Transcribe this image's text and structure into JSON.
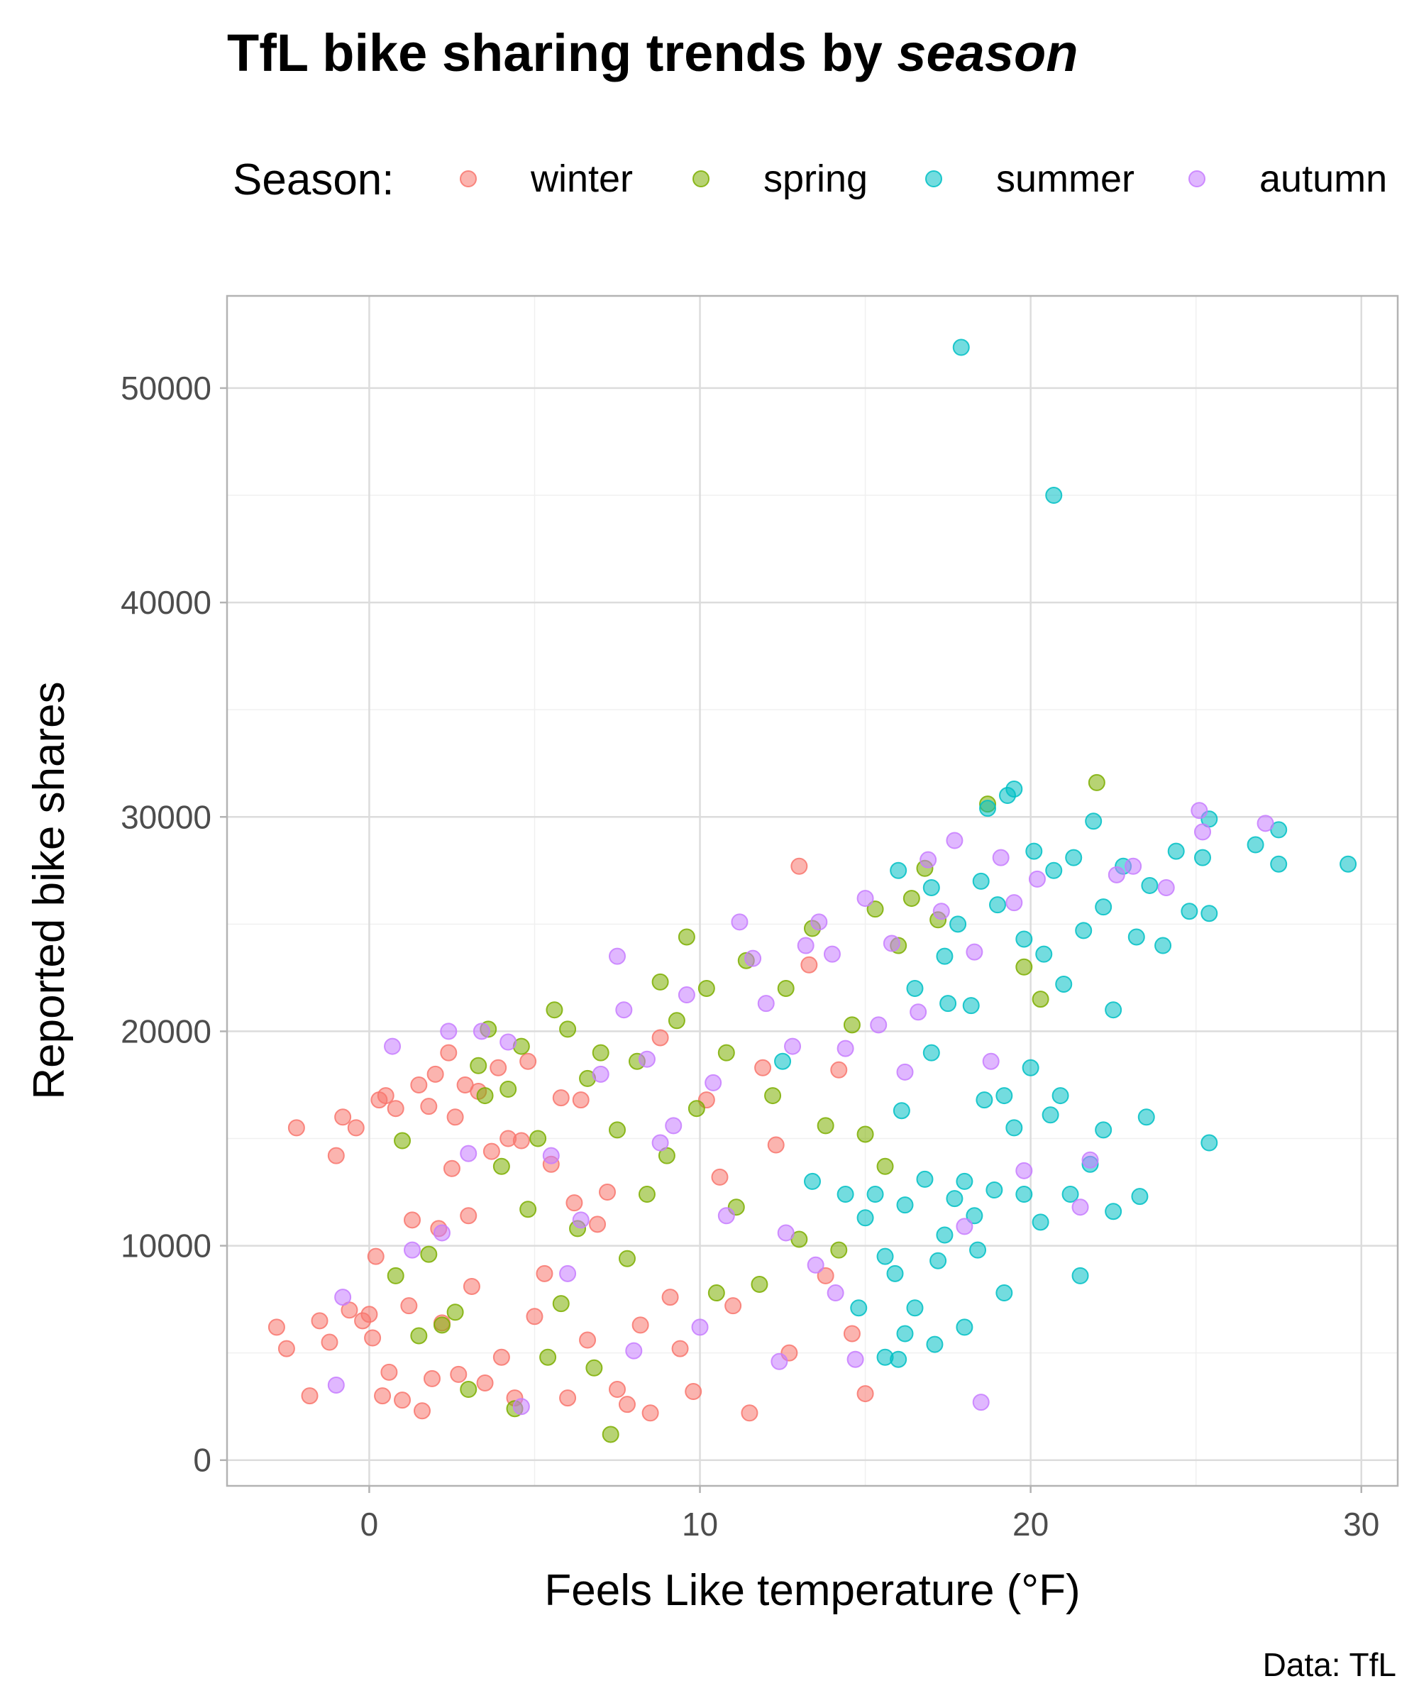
{
  "title": {
    "text": "TfL bike sharing trends by ",
    "emphasis": "season"
  },
  "caption": "Data: TfL",
  "legend": {
    "title": "Season:",
    "position": "top",
    "entries": [
      {
        "label": "winter",
        "color": "#F8766D"
      },
      {
        "label": "spring",
        "color": "#7CAE00"
      },
      {
        "label": "summer",
        "color": "#00BFC4"
      },
      {
        "label": "autumn",
        "color": "#C77CFF"
      }
    ]
  },
  "chart_data": {
    "type": "scatter",
    "xlabel": "Feels Like temperature (°F)",
    "ylabel": "Reported bike shares",
    "xlim": [
      -4.3,
      31.1
    ],
    "ylim": [
      -1200,
      54300
    ],
    "xticks": [
      0,
      10,
      20,
      30
    ],
    "yticks": [
      0,
      10000,
      20000,
      30000,
      40000,
      50000
    ],
    "xtick_labels": [
      "0",
      "10",
      "20",
      "30"
    ],
    "ytick_labels": [
      "0",
      "10000",
      "20000",
      "30000",
      "40000",
      "50000"
    ],
    "grid": true,
    "marker_opacity": 0.55,
    "series": [
      {
        "name": "winter",
        "color": "#F8766D",
        "points": [
          [
            -2.8,
            6200
          ],
          [
            -2.5,
            5200
          ],
          [
            -2.2,
            15500
          ],
          [
            -1.8,
            3000
          ],
          [
            -1.5,
            6500
          ],
          [
            -1.2,
            5500
          ],
          [
            -1.0,
            14200
          ],
          [
            -0.8,
            16000
          ],
          [
            -0.6,
            7000
          ],
          [
            -0.4,
            15500
          ],
          [
            -0.2,
            6500
          ],
          [
            0.0,
            6800
          ],
          [
            0.1,
            5700
          ],
          [
            0.2,
            9500
          ],
          [
            0.3,
            16800
          ],
          [
            0.4,
            3000
          ],
          [
            0.5,
            17000
          ],
          [
            0.6,
            4100
          ],
          [
            0.8,
            16400
          ],
          [
            1.0,
            2800
          ],
          [
            1.2,
            7200
          ],
          [
            1.3,
            11200
          ],
          [
            1.5,
            17500
          ],
          [
            1.6,
            2300
          ],
          [
            1.8,
            16500
          ],
          [
            1.9,
            3800
          ],
          [
            2.0,
            18000
          ],
          [
            2.1,
            10800
          ],
          [
            2.2,
            6400
          ],
          [
            2.4,
            19000
          ],
          [
            2.5,
            13600
          ],
          [
            2.6,
            16000
          ],
          [
            2.7,
            4000
          ],
          [
            2.9,
            17500
          ],
          [
            3.0,
            11400
          ],
          [
            3.1,
            8100
          ],
          [
            3.3,
            17200
          ],
          [
            3.5,
            3600
          ],
          [
            3.7,
            14400
          ],
          [
            3.9,
            18300
          ],
          [
            4.0,
            4800
          ],
          [
            4.2,
            15000
          ],
          [
            4.4,
            2900
          ],
          [
            4.6,
            14900
          ],
          [
            4.8,
            18600
          ],
          [
            5.0,
            6700
          ],
          [
            5.3,
            8700
          ],
          [
            5.5,
            13800
          ],
          [
            5.8,
            16900
          ],
          [
            6.0,
            2900
          ],
          [
            6.2,
            12000
          ],
          [
            6.4,
            16800
          ],
          [
            6.6,
            5600
          ],
          [
            6.9,
            11000
          ],
          [
            7.2,
            12500
          ],
          [
            7.5,
            3300
          ],
          [
            7.8,
            2600
          ],
          [
            8.2,
            6300
          ],
          [
            8.5,
            2200
          ],
          [
            8.8,
            19700
          ],
          [
            9.1,
            7600
          ],
          [
            9.4,
            5200
          ],
          [
            9.8,
            3200
          ],
          [
            10.2,
            16800
          ],
          [
            10.6,
            13200
          ],
          [
            11.0,
            7200
          ],
          [
            11.5,
            2200
          ],
          [
            11.9,
            18300
          ],
          [
            12.3,
            14700
          ],
          [
            12.7,
            5000
          ],
          [
            13.0,
            27700
          ],
          [
            13.3,
            23100
          ],
          [
            13.8,
            8600
          ],
          [
            14.2,
            18200
          ],
          [
            14.6,
            5900
          ],
          [
            15.0,
            3100
          ]
        ]
      },
      {
        "name": "spring",
        "color": "#7CAE00",
        "points": [
          [
            0.8,
            8600
          ],
          [
            1.0,
            14900
          ],
          [
            1.5,
            5800
          ],
          [
            1.8,
            9600
          ],
          [
            2.2,
            6300
          ],
          [
            2.6,
            6900
          ],
          [
            3.0,
            3300
          ],
          [
            3.3,
            18400
          ],
          [
            3.5,
            17000
          ],
          [
            3.6,
            20100
          ],
          [
            4.0,
            13700
          ],
          [
            4.2,
            17300
          ],
          [
            4.4,
            2400
          ],
          [
            4.6,
            19300
          ],
          [
            4.8,
            11700
          ],
          [
            5.1,
            15000
          ],
          [
            5.4,
            4800
          ],
          [
            5.6,
            21000
          ],
          [
            5.8,
            7300
          ],
          [
            6.0,
            20100
          ],
          [
            6.3,
            10800
          ],
          [
            6.6,
            17800
          ],
          [
            6.8,
            4300
          ],
          [
            7.0,
            19000
          ],
          [
            7.3,
            1200
          ],
          [
            7.5,
            15400
          ],
          [
            7.8,
            9400
          ],
          [
            8.1,
            18600
          ],
          [
            8.4,
            12400
          ],
          [
            8.8,
            22300
          ],
          [
            9.0,
            14200
          ],
          [
            9.3,
            20500
          ],
          [
            9.6,
            24400
          ],
          [
            9.9,
            16400
          ],
          [
            10.2,
            22000
          ],
          [
            10.5,
            7800
          ],
          [
            10.8,
            19000
          ],
          [
            11.1,
            11800
          ],
          [
            11.4,
            23300
          ],
          [
            11.8,
            8200
          ],
          [
            12.2,
            17000
          ],
          [
            12.6,
            22000
          ],
          [
            13.0,
            10300
          ],
          [
            13.4,
            24800
          ],
          [
            13.8,
            15600
          ],
          [
            14.2,
            9800
          ],
          [
            14.6,
            20300
          ],
          [
            15.0,
            15200
          ],
          [
            15.3,
            25700
          ],
          [
            15.6,
            13700
          ],
          [
            16.0,
            24000
          ],
          [
            16.4,
            26200
          ],
          [
            16.8,
            27600
          ],
          [
            17.2,
            25200
          ],
          [
            19.8,
            23000
          ],
          [
            20.3,
            21500
          ],
          [
            22.0,
            31600
          ],
          [
            18.7,
            30600
          ]
        ]
      },
      {
        "name": "summer",
        "color": "#00BFC4",
        "points": [
          [
            17.9,
            51900
          ],
          [
            20.7,
            45000
          ],
          [
            16.0,
            27500
          ],
          [
            16.5,
            22000
          ],
          [
            17.0,
            26700
          ],
          [
            17.4,
            23500
          ],
          [
            17.8,
            25000
          ],
          [
            18.2,
            21200
          ],
          [
            18.5,
            27000
          ],
          [
            18.7,
            30400
          ],
          [
            19.0,
            25900
          ],
          [
            19.3,
            31000
          ],
          [
            19.5,
            31300
          ],
          [
            19.8,
            24300
          ],
          [
            20.1,
            28400
          ],
          [
            20.4,
            23600
          ],
          [
            20.7,
            27500
          ],
          [
            21.0,
            22200
          ],
          [
            21.3,
            28100
          ],
          [
            21.6,
            24700
          ],
          [
            21.9,
            29800
          ],
          [
            22.2,
            25800
          ],
          [
            22.5,
            21000
          ],
          [
            22.8,
            27700
          ],
          [
            23.2,
            24400
          ],
          [
            23.6,
            26800
          ],
          [
            24.0,
            24000
          ],
          [
            24.4,
            28400
          ],
          [
            24.8,
            25600
          ],
          [
            25.2,
            28100
          ],
          [
            25.4,
            25500
          ],
          [
            25.4,
            29900
          ],
          [
            25.4,
            14800
          ],
          [
            26.8,
            28700
          ],
          [
            27.5,
            27800
          ],
          [
            27.5,
            29400
          ],
          [
            29.6,
            27800
          ],
          [
            17.0,
            19000
          ],
          [
            17.5,
            21300
          ],
          [
            18.0,
            13000
          ],
          [
            18.3,
            11400
          ],
          [
            18.6,
            16800
          ],
          [
            18.9,
            12600
          ],
          [
            19.2,
            17000
          ],
          [
            19.5,
            15500
          ],
          [
            19.8,
            12400
          ],
          [
            20.0,
            18300
          ],
          [
            20.3,
            11100
          ],
          [
            20.6,
            16100
          ],
          [
            20.9,
            17000
          ],
          [
            21.2,
            12400
          ],
          [
            21.5,
            8600
          ],
          [
            21.8,
            13800
          ],
          [
            22.2,
            15400
          ],
          [
            22.5,
            11600
          ],
          [
            23.3,
            12300
          ],
          [
            23.5,
            16000
          ],
          [
            15.0,
            11300
          ],
          [
            15.3,
            12400
          ],
          [
            15.6,
            9500
          ],
          [
            15.9,
            8700
          ],
          [
            16.2,
            11900
          ],
          [
            16.5,
            7100
          ],
          [
            16.8,
            13100
          ],
          [
            17.1,
            5400
          ],
          [
            17.4,
            10500
          ],
          [
            17.7,
            12200
          ],
          [
            18.0,
            6200
          ],
          [
            18.4,
            9800
          ],
          [
            14.4,
            12400
          ],
          [
            14.8,
            7100
          ],
          [
            15.6,
            4800
          ],
          [
            16.2,
            5900
          ],
          [
            16.0,
            4700
          ],
          [
            17.2,
            9300
          ],
          [
            19.2,
            7800
          ],
          [
            12.5,
            18600
          ],
          [
            13.4,
            13000
          ],
          [
            16.1,
            16300
          ]
        ]
      },
      {
        "name": "autumn",
        "color": "#C77CFF",
        "points": [
          [
            -1.0,
            3500
          ],
          [
            -0.8,
            7600
          ],
          [
            0.7,
            19300
          ],
          [
            1.3,
            9800
          ],
          [
            2.2,
            10600
          ],
          [
            2.4,
            20000
          ],
          [
            3.0,
            14300
          ],
          [
            3.4,
            20000
          ],
          [
            4.2,
            19500
          ],
          [
            4.6,
            2500
          ],
          [
            5.5,
            14200
          ],
          [
            6.0,
            8700
          ],
          [
            6.4,
            11200
          ],
          [
            7.0,
            18000
          ],
          [
            7.5,
            23500
          ],
          [
            7.7,
            21000
          ],
          [
            8.0,
            5100
          ],
          [
            8.4,
            18700
          ],
          [
            8.8,
            14800
          ],
          [
            9.2,
            15600
          ],
          [
            9.6,
            21700
          ],
          [
            10.0,
            6200
          ],
          [
            10.4,
            17600
          ],
          [
            10.8,
            11400
          ],
          [
            11.2,
            25100
          ],
          [
            11.6,
            23400
          ],
          [
            12.0,
            21300
          ],
          [
            12.4,
            4600
          ],
          [
            12.8,
            19300
          ],
          [
            13.2,
            24000
          ],
          [
            13.6,
            25100
          ],
          [
            14.0,
            23600
          ],
          [
            14.4,
            19200
          ],
          [
            14.7,
            4700
          ],
          [
            15.0,
            26200
          ],
          [
            15.4,
            20300
          ],
          [
            15.8,
            24100
          ],
          [
            16.2,
            18100
          ],
          [
            16.6,
            20900
          ],
          [
            16.9,
            28000
          ],
          [
            17.3,
            25600
          ],
          [
            17.7,
            28900
          ],
          [
            18.0,
            10900
          ],
          [
            18.3,
            23700
          ],
          [
            18.5,
            2700
          ],
          [
            18.8,
            18600
          ],
          [
            19.1,
            28100
          ],
          [
            19.5,
            26000
          ],
          [
            19.8,
            13500
          ],
          [
            20.2,
            27100
          ],
          [
            21.5,
            11800
          ],
          [
            21.8,
            14000
          ],
          [
            22.6,
            27300
          ],
          [
            23.1,
            27700
          ],
          [
            24.1,
            26700
          ],
          [
            25.1,
            30300
          ],
          [
            25.2,
            29300
          ],
          [
            27.1,
            29700
          ],
          [
            13.5,
            9100
          ],
          [
            14.1,
            7800
          ],
          [
            12.6,
            10600
          ]
        ]
      }
    ]
  }
}
